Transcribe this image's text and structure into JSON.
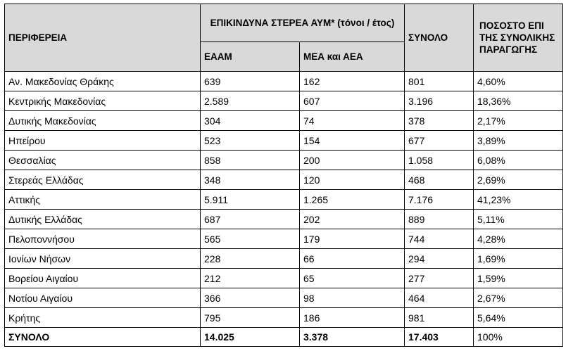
{
  "header": {
    "region": "ΠΕΡΙΦΕΡΕΙΑ",
    "group": "ΕΠΙΚΙΝΔΥΝΑ ΣΤΕΡΕΑ ΑΥΜ* (τόνοι / έτος)",
    "sub1": "ΕΑΑΜ",
    "sub2": "ΜΕΑ και ΑΕΑ",
    "total": "ΣΥΝΟΛΟ",
    "share": "ΠΟΣΟΣΤΟ ΕΠΙ ΤΗΣ ΣΥΝΟΛΙΚΗΣ ΠΑΡΑΓΩΓΗΣ"
  },
  "rows": [
    {
      "region": "Αν. Μακεδονίας Θράκης",
      "eaam": "639",
      "mea": "162",
      "total": "801",
      "share": "4,60%"
    },
    {
      "region": "Κεντρικής Μακεδονίας",
      "eaam": "2.589",
      "mea": "607",
      "total": "3.196",
      "share": "18,36%"
    },
    {
      "region": "Δυτικής Μακεδονίας",
      "eaam": "304",
      "mea": "74",
      "total": "378",
      "share": "2,17%"
    },
    {
      "region": "Ηπείρου",
      "eaam": "523",
      "mea": "154",
      "total": "677",
      "share": "3,89%"
    },
    {
      "region": "Θεσσαλίας",
      "eaam": "858",
      "mea": "200",
      "total": "1.058",
      "share": "6,08%"
    },
    {
      "region": "Στερεάς Ελλάδας",
      "eaam": "348",
      "mea": "120",
      "total": "468",
      "share": "2,69%"
    },
    {
      "region": "Αττικής",
      "eaam": "5.911",
      "mea": "1.265",
      "total": "7.176",
      "share": "41,23%"
    },
    {
      "region": "Δυτικής Ελλάδας",
      "eaam": "687",
      "mea": "202",
      "total": "889",
      "share": "5,11%"
    },
    {
      "region": "Πελοποννήσου",
      "eaam": "565",
      "mea": "179",
      "total": "744",
      "share": "4,28%"
    },
    {
      "region": "Ιονίων Νήσων",
      "eaam": "228",
      "mea": "66",
      "total": "294",
      "share": "1,69%"
    },
    {
      "region": "Βορείου Αιγαίου",
      "eaam": "212",
      "mea": "65",
      "total": "277",
      "share": "1,59%"
    },
    {
      "region": "Νοτίου Αιγαίου",
      "eaam": "366",
      "mea": "98",
      "total": "464",
      "share": "2,67%"
    },
    {
      "region": "Κρήτης",
      "eaam": "795",
      "mea": "186",
      "total": "981",
      "share": "5,64%"
    }
  ],
  "totals": {
    "region": "ΣΥΝΟΛΟ",
    "eaam": "14.025",
    "mea": "3.378",
    "total": "17.403",
    "share": "100%"
  }
}
